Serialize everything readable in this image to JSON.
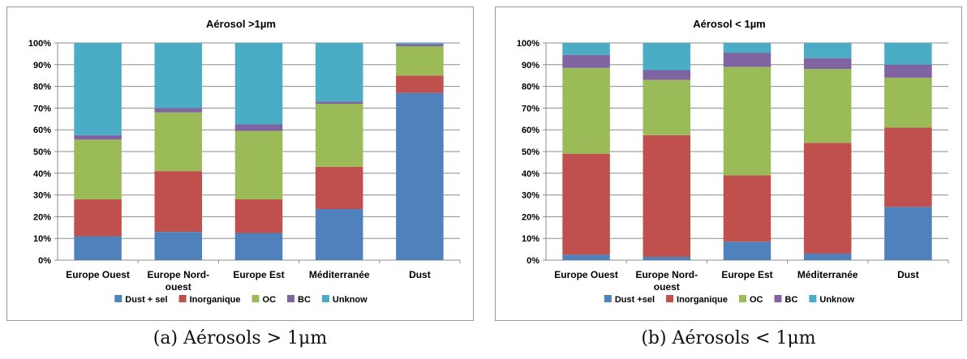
{
  "chart_data": [
    {
      "type": "bar",
      "stacked": true,
      "title": "Aérosol >1µm",
      "caption": "(a) Aérosols > 1μm",
      "categories": [
        "Europe Ouest",
        "Europe Nord-ouest",
        "Europe Est",
        "Méditerranée",
        "Dust"
      ],
      "category_lines": [
        [
          "Europe Ouest"
        ],
        [
          "Europe Nord-",
          "ouest"
        ],
        [
          "Europe Est"
        ],
        [
          "Méditerranée"
        ],
        [
          "Dust"
        ]
      ],
      "yticks": [
        "0%",
        "10%",
        "20%",
        "30%",
        "40%",
        "50%",
        "60%",
        "70%",
        "80%",
        "90%",
        "100%"
      ],
      "ylim": [
        0,
        100
      ],
      "grid": true,
      "legend_position": "bottom",
      "series": [
        {
          "name": "Dust + sel",
          "color": "#4f81bd",
          "values": [
            11,
            13,
            12.5,
            23.5,
            77
          ]
        },
        {
          "name": "Inorganique",
          "color": "#c0504d",
          "values": [
            17,
            28,
            15.5,
            19.5,
            8
          ]
        },
        {
          "name": "OC",
          "color": "#9bbb59",
          "values": [
            27.5,
            27,
            31.5,
            29,
            13.5
          ]
        },
        {
          "name": "BC",
          "color": "#8064a2",
          "values": [
            2,
            2,
            3,
            1,
            1
          ]
        },
        {
          "name": "Unknow",
          "color": "#4bacc6",
          "values": [
            42.5,
            30,
            37.5,
            27,
            0.5
          ]
        }
      ]
    },
    {
      "type": "bar",
      "stacked": true,
      "title": "Aérosol < 1µm",
      "caption": "(b) Aérosols < 1μm",
      "categories": [
        "Europe Ouest",
        "Europe Nord-ouest",
        "Europe Est",
        "Méditerranée",
        "Dust"
      ],
      "category_lines": [
        [
          "Europe Ouest"
        ],
        [
          "Europe Nord-",
          "ouest"
        ],
        [
          "Europe Est"
        ],
        [
          "Méditerranée"
        ],
        [
          "Dust"
        ]
      ],
      "yticks": [
        "0%",
        "10%",
        "20%",
        "30%",
        "40%",
        "50%",
        "60%",
        "70%",
        "80%",
        "90%",
        "100%"
      ],
      "ylim": [
        0,
        100
      ],
      "grid": true,
      "legend_position": "bottom",
      "series": [
        {
          "name": "Dust +sel",
          "color": "#4f81bd",
          "values": [
            2.5,
            1.5,
            8.5,
            3,
            24.5
          ]
        },
        {
          "name": "Inorganique",
          "color": "#c0504d",
          "values": [
            46.5,
            56,
            30.5,
            51,
            36.5
          ]
        },
        {
          "name": "OC",
          "color": "#9bbb59",
          "values": [
            39.5,
            25.5,
            50,
            34,
            23
          ]
        },
        {
          "name": "BC",
          "color": "#8064a2",
          "values": [
            6,
            4.5,
            6.5,
            5,
            6
          ]
        },
        {
          "name": "Unknow",
          "color": "#4bacc6",
          "values": [
            5.5,
            12.5,
            4.5,
            7,
            10
          ]
        }
      ]
    }
  ]
}
